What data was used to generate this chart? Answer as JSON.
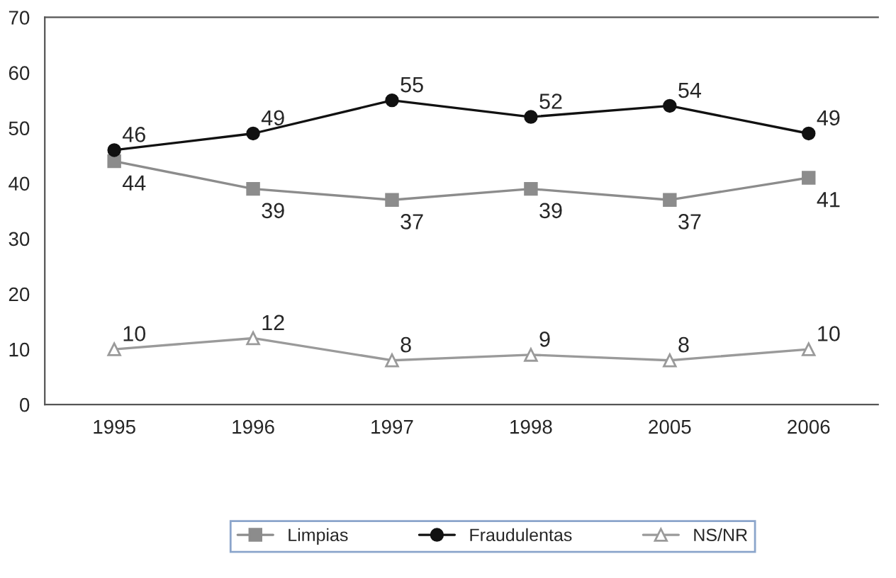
{
  "chart_data": {
    "type": "line",
    "categories": [
      "1995",
      "1996",
      "1997",
      "1998",
      "2005",
      "2006"
    ],
    "series": [
      {
        "name": "Limpias",
        "color": "#8c8c8c",
        "marker": "square",
        "values": [
          44,
          39,
          37,
          39,
          37,
          41
        ]
      },
      {
        "name": "Fraudulentas",
        "color": "#111111",
        "marker": "circle",
        "values": [
          46,
          49,
          55,
          52,
          54,
          49
        ]
      },
      {
        "name": "NS/NR",
        "color": "#9a9a9a",
        "marker": "triangle",
        "values": [
          10,
          12,
          8,
          9,
          8,
          10
        ]
      }
    ],
    "ylim": [
      0,
      70
    ],
    "yticks": [
      0,
      10,
      20,
      30,
      40,
      50,
      60,
      70
    ],
    "data_labels": true,
    "grid": false,
    "legend": "bottom",
    "line_style": "solid"
  }
}
